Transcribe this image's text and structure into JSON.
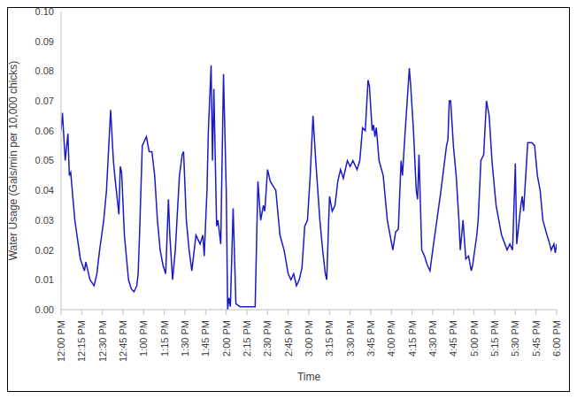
{
  "chart_data": {
    "type": "line",
    "xlabel": "Time",
    "ylabel": "Water Usage (Gals/min per 10,000 chicks)",
    "color": "#1a1ac8",
    "grid": false,
    "x": [
      0,
      1,
      3,
      5,
      6,
      7,
      10,
      14,
      17,
      18,
      21,
      24,
      26,
      28,
      31,
      33,
      36,
      38,
      39,
      42,
      43,
      44,
      46,
      48,
      49,
      51,
      53,
      55,
      56,
      57,
      59,
      60,
      62,
      64,
      66,
      68,
      70,
      72,
      74,
      76,
      78,
      79,
      81,
      83,
      86,
      88,
      89,
      91,
      93,
      95,
      98,
      101,
      103,
      104,
      106,
      107,
      109,
      110,
      111,
      113,
      114,
      116,
      118,
      120,
      121,
      122,
      123,
      125,
      127,
      130,
      135,
      141,
      143,
      145,
      147,
      148,
      150,
      152,
      156,
      159,
      162,
      165,
      167,
      169,
      171,
      173,
      175,
      177,
      179,
      181,
      183,
      185,
      188,
      190,
      192,
      193,
      195,
      197,
      199,
      201,
      203,
      205,
      208,
      210,
      212,
      215,
      217,
      219,
      221,
      223,
      224,
      226,
      227,
      228,
      229,
      231,
      234,
      237,
      239,
      241,
      243,
      245,
      247,
      248,
      250,
      253,
      254,
      256,
      258,
      259,
      260,
      262,
      264,
      266,
      268,
      270,
      273,
      276,
      280,
      281,
      282,
      283,
      285,
      287,
      289,
      290,
      292,
      294,
      296,
      298,
      299,
      302,
      303,
      305,
      307,
      309,
      311,
      313,
      316,
      320,
      324,
      326,
      328,
      330,
      331,
      334,
      335,
      336,
      339,
      342,
      344,
      346,
      348,
      350,
      353,
      355,
      356,
      358,
      359,
      360
    ],
    "values": [
      0.06,
      0.066,
      0.05,
      0.059,
      0.045,
      0.046,
      0.03,
      0.017,
      0.013,
      0.016,
      0.01,
      0.008,
      0.012,
      0.02,
      0.03,
      0.04,
      0.067,
      0.05,
      0.045,
      0.032,
      0.048,
      0.046,
      0.025,
      0.015,
      0.01,
      0.007,
      0.006,
      0.008,
      0.012,
      0.025,
      0.055,
      0.056,
      0.058,
      0.053,
      0.053,
      0.045,
      0.03,
      0.02,
      0.015,
      0.012,
      0.037,
      0.025,
      0.01,
      0.02,
      0.045,
      0.052,
      0.053,
      0.03,
      0.02,
      0.013,
      0.025,
      0.022,
      0.025,
      0.018,
      0.04,
      0.06,
      0.082,
      0.05,
      0.074,
      0.028,
      0.03,
      0.022,
      0.079,
      0.04,
      0,
      0.004,
      0.001,
      0.034,
      0.002,
      0.001,
      0.001,
      0.001,
      0.043,
      0.03,
      0.035,
      0.033,
      0.047,
      0.043,
      0.04,
      0.025,
      0.02,
      0.012,
      0.01,
      0.012,
      0.008,
      0.01,
      0.014,
      0.028,
      0.03,
      0.045,
      0.065,
      0.05,
      0.03,
      0.02,
      0.012,
      0.01,
      0.038,
      0.033,
      0.035,
      0.043,
      0.047,
      0.044,
      0.05,
      0.048,
      0.05,
      0.047,
      0.05,
      0.061,
      0.06,
      0.077,
      0.075,
      0.06,
      0.062,
      0.058,
      0.061,
      0.05,
      0.045,
      0.03,
      0.025,
      0.02,
      0.026,
      0.027,
      0.05,
      0.045,
      0.06,
      0.081,
      0.075,
      0.06,
      0.04,
      0.037,
      0.052,
      0.02,
      0.018,
      0.015,
      0.013,
      0.02,
      0.03,
      0.04,
      0.055,
      0.057,
      0.07,
      0.07,
      0.055,
      0.045,
      0.03,
      0.02,
      0.03,
      0.017,
      0.018,
      0.013,
      0.015,
      0.025,
      0.03,
      0.05,
      0.052,
      0.07,
      0.065,
      0.05,
      0.035,
      0.025,
      0.02,
      0.022,
      0.02,
      0.049,
      0.022,
      0.035,
      0.038,
      0.033,
      0.056,
      0.056,
      0.055,
      0.045,
      0.04,
      0.03,
      0.025,
      0.022,
      0.02,
      0.022,
      0.019,
      0.022
    ],
    "xlim": [
      0,
      360
    ],
    "xticks": [
      {
        "value": 0,
        "label": "12:00 PM"
      },
      {
        "value": 15,
        "label": "12:15 PM"
      },
      {
        "value": 30,
        "label": "12:30 PM"
      },
      {
        "value": 45,
        "label": "12:45 PM"
      },
      {
        "value": 60,
        "label": "1:00 PM"
      },
      {
        "value": 75,
        "label": "1:15 PM"
      },
      {
        "value": 90,
        "label": "1:30 PM"
      },
      {
        "value": 105,
        "label": "1:45 PM"
      },
      {
        "value": 120,
        "label": "2:00 PM"
      },
      {
        "value": 135,
        "label": "2:15 PM"
      },
      {
        "value": 150,
        "label": "2:30 PM"
      },
      {
        "value": 165,
        "label": "2:45 PM"
      },
      {
        "value": 180,
        "label": "3:00 PM"
      },
      {
        "value": 195,
        "label": "3:15 PM"
      },
      {
        "value": 210,
        "label": "3:30 PM"
      },
      {
        "value": 225,
        "label": "3:45 PM"
      },
      {
        "value": 240,
        "label": "4:00 PM"
      },
      {
        "value": 255,
        "label": "4:15 PM"
      },
      {
        "value": 270,
        "label": "4:30 PM"
      },
      {
        "value": 285,
        "label": "4:45 PM"
      },
      {
        "value": 300,
        "label": "5:00 PM"
      },
      {
        "value": 315,
        "label": "5:15 PM"
      },
      {
        "value": 330,
        "label": "5:30 PM"
      },
      {
        "value": 345,
        "label": "5:45 PM"
      },
      {
        "value": 360,
        "label": "6:00 PM"
      }
    ],
    "ylim": [
      0,
      0.1
    ],
    "yticks": [
      {
        "value": 0,
        "label": "0.00"
      },
      {
        "value": 0.01,
        "label": "0.01"
      },
      {
        "value": 0.02,
        "label": "0.02"
      },
      {
        "value": 0.03,
        "label": "0.03"
      },
      {
        "value": 0.04,
        "label": "0.04"
      },
      {
        "value": 0.05,
        "label": "0.05"
      },
      {
        "value": 0.06,
        "label": "0.06"
      },
      {
        "value": 0.07,
        "label": "0.07"
      },
      {
        "value": 0.08,
        "label": "0.08"
      },
      {
        "value": 0.09,
        "label": "0.09"
      },
      {
        "value": 0.1,
        "label": "0.10"
      }
    ]
  }
}
